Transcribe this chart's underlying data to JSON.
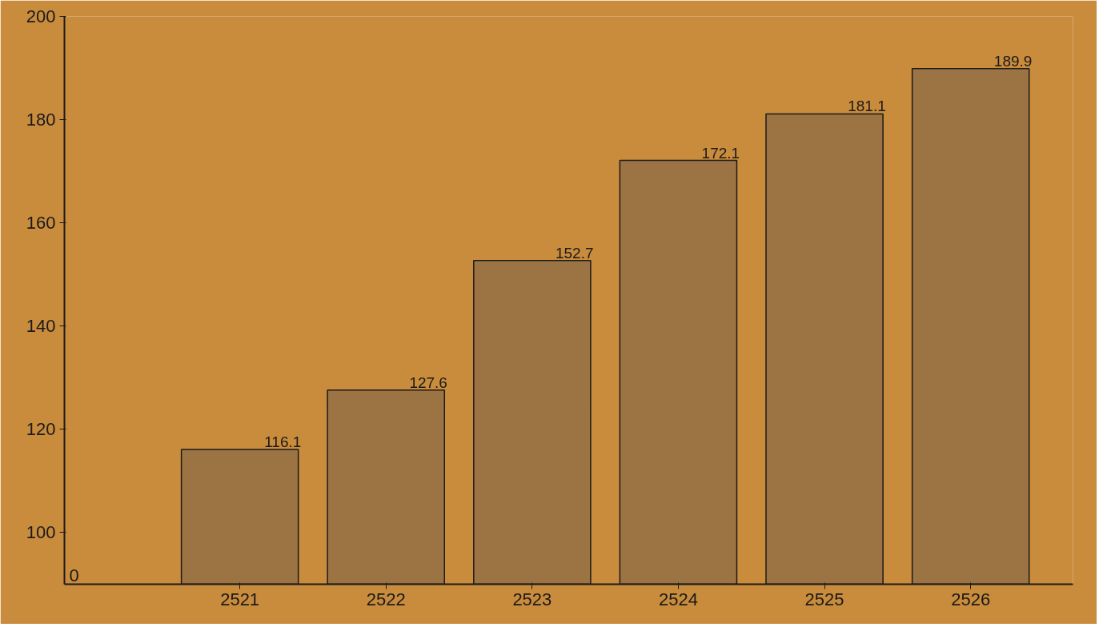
{
  "chart_data": {
    "type": "bar",
    "categories": [
      "2521",
      "2522",
      "2523",
      "2524",
      "2525",
      "2526"
    ],
    "values": [
      116.1,
      127.6,
      152.7,
      172.1,
      181.1,
      189.9
    ],
    "color": "#9c7444",
    "ylim": [
      90,
      200
    ],
    "yticks": [
      100,
      120,
      140,
      160,
      180,
      200
    ],
    "annotations": [
      "0"
    ],
    "data_labels": true,
    "grid": false
  }
}
